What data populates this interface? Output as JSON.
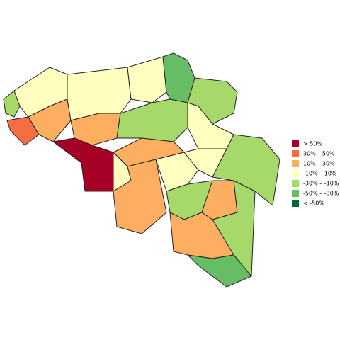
{
  "legend": [
    {
      "label": "> 50%",
      "color": "#a50026"
    },
    {
      "label": "30%  –  50%",
      "color": "#f46d43"
    },
    {
      "label": "10%  –  30%",
      "color": "#fdae61"
    },
    {
      "label": "-10%  –  10%",
      "color": "#ffffbf"
    },
    {
      "label": "-30%  –  -10%",
      "color": "#a6d96a"
    },
    {
      "label": "-50%  –  -30%",
      "color": "#66bd63"
    },
    {
      "label": "< -50%",
      "color": "#006837"
    }
  ]
}
